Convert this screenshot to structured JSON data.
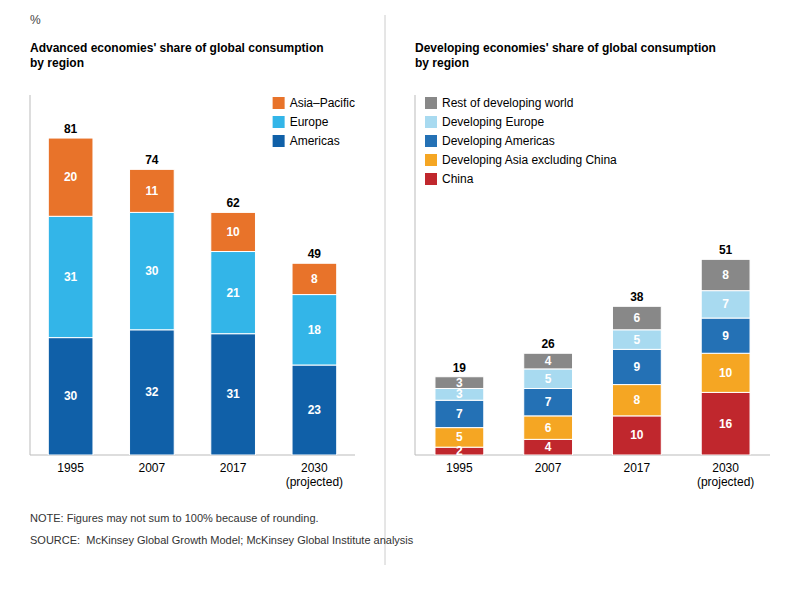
{
  "chart_data": [
    {
      "type": "bar",
      "stacked": true,
      "data_labels": true,
      "tick_labels": "x",
      "grid": false,
      "legend": "upper right",
      "title": "Advanced economies' share of global consumption\nby region",
      "ylabel": "%",
      "categories": [
        "1995",
        "2007",
        "2017",
        "2030\n(projected)"
      ],
      "series": [
        {
          "name": "Americas",
          "color": "#1060a8",
          "values": [
            30,
            32,
            31,
            23
          ]
        },
        {
          "name": "Europe",
          "color": "#33b5e8",
          "values": [
            31,
            30,
            21,
            18
          ]
        },
        {
          "name": "Asia–Pacific",
          "color": "#e8732a",
          "values": [
            20,
            11,
            10,
            8
          ]
        }
      ],
      "totals": [
        81,
        74,
        62,
        49
      ],
      "ylim": [
        0,
        92
      ],
      "annotations": [
        "NOTE: Figures may not sum to 100% because of rounding.",
        "SOURCE:  McKinsey Global Growth Model; McKinsey Global Institute analysis"
      ]
    },
    {
      "type": "bar",
      "stacked": true,
      "data_labels": true,
      "tick_labels": "x",
      "grid": false,
      "legend": "upper left",
      "title": "Developing economies' share of global consumption\nby region",
      "categories": [
        "1995",
        "2007",
        "2017",
        "2030\n(projected)"
      ],
      "series": [
        {
          "name": "China",
          "color": "#c0272d",
          "values": [
            2,
            4,
            10,
            16
          ]
        },
        {
          "name": "Developing Asia excluding China",
          "color": "#f5a623",
          "values": [
            5,
            6,
            8,
            10
          ]
        },
        {
          "name": "Developing Americas",
          "color": "#2471b5",
          "values": [
            7,
            7,
            9,
            9
          ]
        },
        {
          "name": "Developing Europe",
          "color": "#a8daf0",
          "values": [
            3,
            5,
            5,
            7
          ]
        },
        {
          "name": "Rest of developing world",
          "color": "#888888",
          "values": [
            3,
            4,
            6,
            8
          ]
        }
      ],
      "totals": [
        19,
        26,
        38,
        51
      ],
      "ylim": [
        0,
        92
      ]
    }
  ]
}
